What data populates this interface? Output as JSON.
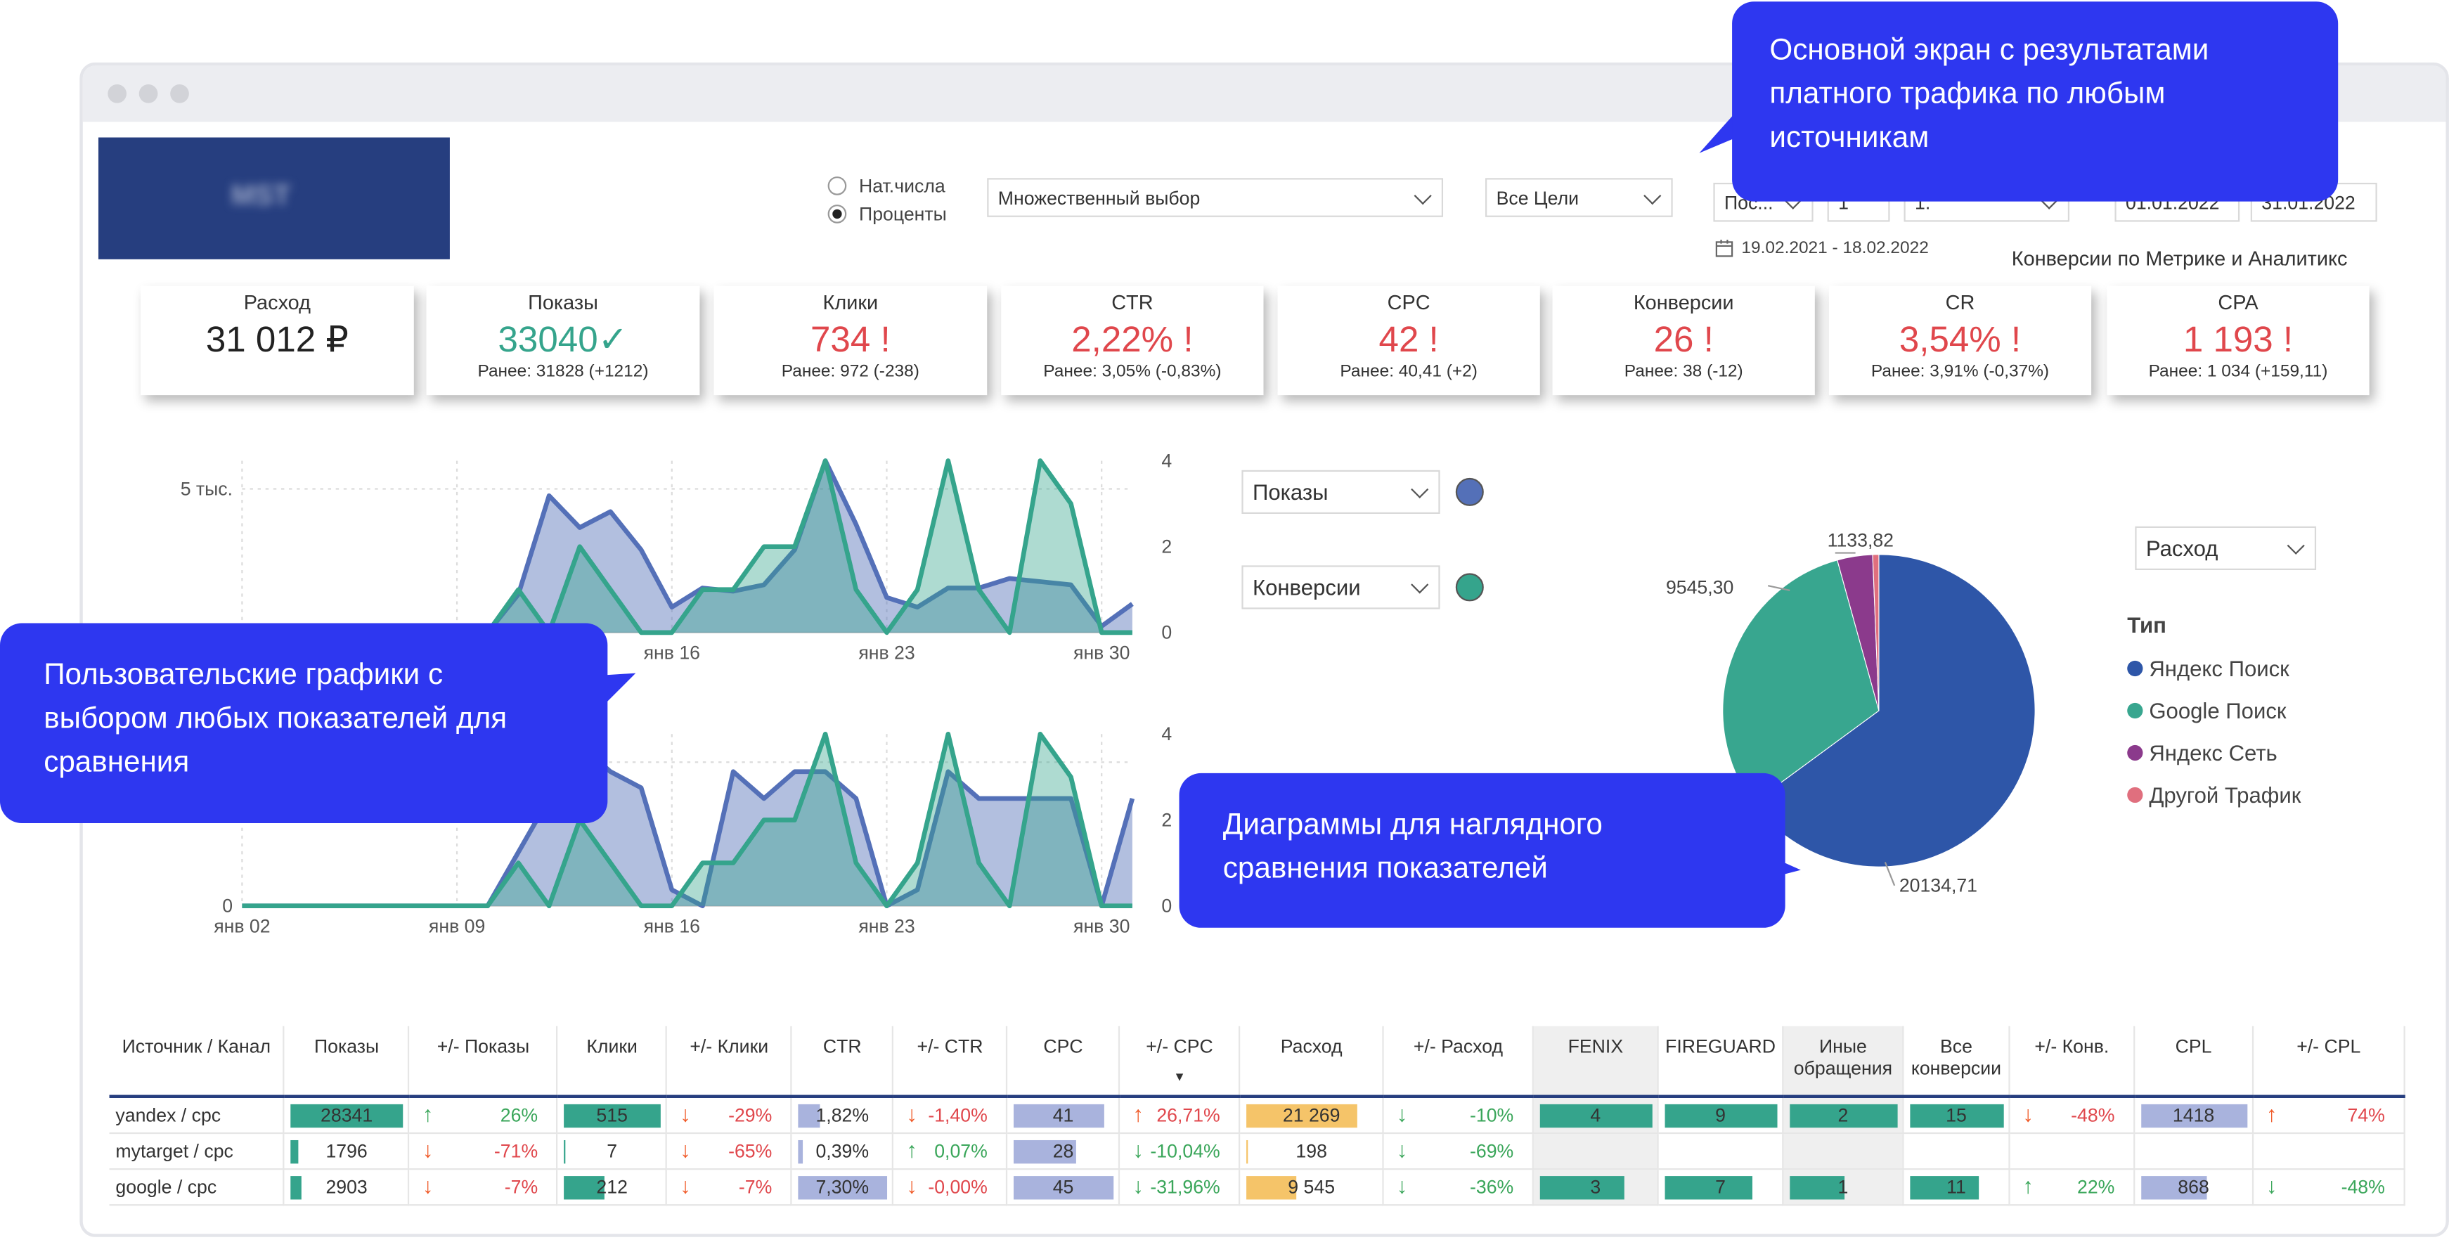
{
  "filters": {
    "radio_nat": "Нат.числа",
    "radio_pct": "Проценты",
    "multi_select": "Множественный выбор",
    "goals": "Все Цели",
    "period": "Пос...",
    "period_n": "1",
    "period_unit": "1.",
    "date_from": "01.01.2022",
    "date_to": "31.01.2022",
    "date_range": "19.02.2021 - 18.02.2022",
    "conversions_note": "Конверсии по Метрике и Аналитикс"
  },
  "kpis": [
    {
      "title": "Расход",
      "value": "31 012 ₽",
      "sub": "",
      "color": "#222222"
    },
    {
      "title": "Показы",
      "value": "33040✓",
      "sub": "Ранее: 31828 (+1212)",
      "color": "#35a48c"
    },
    {
      "title": "Клики",
      "value": "734 !",
      "sub": "Ранее: 972 (-238)",
      "color": "#e0474c"
    },
    {
      "title": "CTR",
      "value": "2,22% !",
      "sub": "Ранее: 3,05% (-0,83%)",
      "color": "#e0474c"
    },
    {
      "title": "CPC",
      "value": "42 !",
      "sub": "Ранее: 40,41 (+2)",
      "color": "#e0474c"
    },
    {
      "title": "Конверсии",
      "value": "26 !",
      "sub": "Ранее: 38 (-12)",
      "color": "#e0474c"
    },
    {
      "title": "CR",
      "value": "3,54% !",
      "sub": "Ранее: 3,91% (-0,37%)",
      "color": "#e0474c"
    },
    {
      "title": "CPA",
      "value": "1 193 !",
      "sub": "Ранее: 1 034 (+159,11)",
      "color": "#e0474c"
    }
  ],
  "callouts": {
    "top": "Основной экран с результатами платного трафика по любым источникам",
    "left": "Пользовательские графики с выбором любых показателей для сравнения",
    "bottom": "Диаграммы для наглядного сравнения показателей"
  },
  "selectors": {
    "metric1": "Показы",
    "metric2": "Конверсии",
    "metric1_color": "#5470b8",
    "metric2_color": "#35a48c",
    "pie_metric": "Расход"
  },
  "chart_data": [
    {
      "type": "area",
      "x": [
        "янв 02",
        "янв 03",
        "янв 04",
        "янв 05",
        "янв 06",
        "янв 07",
        "янв 08",
        "янв 09",
        "янв 10",
        "янв 11",
        "янв 12",
        "янв 13",
        "янв 14",
        "янв 15",
        "янв 16",
        "янв 17",
        "янв 18",
        "янв 19",
        "янв 20",
        "янв 21",
        "янв 22",
        "янв 23",
        "янв 24",
        "янв 25",
        "янв 26",
        "янв 27",
        "янв 28",
        "янв 29",
        "янв 30",
        "янв 31"
      ],
      "x_tick_labels": [
        "янв 16",
        "янв 23",
        "янв 30"
      ],
      "y_left_tick_labels": [
        "5 тыс."
      ],
      "y_right_ticks": [
        0,
        2,
        4
      ],
      "series": [
        {
          "name": "Показы",
          "axis": "left",
          "color": "#5470b8",
          "values": [
            0,
            0,
            0,
            0,
            0,
            0,
            0,
            0,
            0,
            1200,
            4300,
            3300,
            3800,
            2600,
            800,
            1400,
            1300,
            1500,
            2600,
            5400,
            3400,
            1100,
            800,
            1400,
            1400,
            1700,
            1600,
            1500,
            200,
            900
          ]
        },
        {
          "name": "Конверсии",
          "axis": "right",
          "color": "#35a48c",
          "values": [
            0,
            0,
            0,
            0,
            0,
            0,
            0,
            0,
            0,
            1,
            0,
            2,
            1,
            0,
            0,
            1,
            1,
            2,
            2,
            4,
            1,
            0,
            1,
            4,
            1,
            0,
            4,
            3,
            0,
            0
          ]
        }
      ]
    },
    {
      "type": "area",
      "x": [
        "янв 02",
        "янв 03",
        "янв 04",
        "янв 05",
        "янв 06",
        "янв 07",
        "янв 08",
        "янв 09",
        "янв 10",
        "янв 11",
        "янв 12",
        "янв 13",
        "янв 14",
        "янв 15",
        "янв 16",
        "янв 17",
        "янв 18",
        "янв 19",
        "янв 20",
        "янв 21",
        "янв 22",
        "янв 23",
        "янв 24",
        "янв 25",
        "янв 26",
        "янв 27",
        "янв 28",
        "янв 29",
        "янв 30",
        "янв 31"
      ],
      "x_tick_labels": [
        "янв 02",
        "янв 09",
        "янв 16",
        "янв 23",
        "янв 30"
      ],
      "y_left_tick_labels": [
        "0"
      ],
      "y_right_ticks": [
        0,
        2,
        4
      ],
      "series": [
        {
          "name": "Показы",
          "axis": "left",
          "color": "#5470b8",
          "values": [
            0,
            0,
            0,
            0,
            0,
            0,
            0,
            0,
            0,
            1,
            2,
            3,
            2.5,
            2.2,
            0.3,
            0,
            2.5,
            2,
            2.5,
            2.5,
            2,
            0,
            0.3,
            2.5,
            2,
            2,
            2,
            2,
            0,
            2
          ]
        },
        {
          "name": "Конверсии",
          "axis": "right",
          "color": "#35a48c",
          "values": [
            0,
            0,
            0,
            0,
            0,
            0,
            0,
            0,
            0,
            1,
            0,
            2,
            1,
            0,
            0,
            1,
            1,
            2,
            2,
            4,
            1,
            0,
            1,
            4,
            1,
            0,
            4,
            3,
            0,
            0
          ]
        }
      ]
    },
    {
      "type": "pie",
      "legend_title": "Тип",
      "slices": [
        {
          "label": "Яндекс Поиск",
          "value": 20134.71,
          "color": "#2e56a8"
        },
        {
          "label": "Google Поиск",
          "value": 9545.3,
          "color": "#38a68f"
        },
        {
          "label": "Яндекс Сеть",
          "value": 1133.82,
          "color": "#8b3a8c"
        },
        {
          "label": "Другой Трафик",
          "value": 198.17,
          "color": "#e06f7e"
        }
      ],
      "data_labels": [
        "20134,71",
        "9545,30",
        "1133,82"
      ]
    }
  ],
  "table": {
    "headers": [
      "Источник / Канал",
      "Показы",
      "+/- Показы",
      "Клики",
      "+/- Клики",
      "CTR",
      "+/- CTR",
      "CPC",
      "+/- CPC",
      "Расход",
      "+/- Расход",
      "FENIX",
      "FIREGUARD",
      "Иные обращения",
      "Все конверсии",
      "+/- Конв.",
      "CPL",
      "+/- CPL"
    ],
    "sort_marker": "▼",
    "rows": [
      {
        "source": "yandex / cpc",
        "shows": "28341",
        "shows_d": "26%",
        "shows_dir": "up",
        "clicks": "515",
        "clicks_d": "-29%",
        "clicks_dir": "down",
        "ctr": "1,82%",
        "ctr_d": "-1,40%",
        "ctr_dir": "down",
        "cpc": "41",
        "cpc_d": "26,71%",
        "cpc_dir": "up",
        "spend": "21 269",
        "spend_d": "-10%",
        "spend_dir": "down",
        "fenix": "4",
        "fireguard": "9",
        "other": "2",
        "all_conv": "15",
        "conv_d": "-48%",
        "conv_dir": "down",
        "cpl": "1418",
        "cpl_d": "74%",
        "cpl_dir": "up"
      },
      {
        "source": "mytarget / cpc",
        "shows": "1796",
        "shows_d": "-71%",
        "shows_dir": "down",
        "clicks": "7",
        "clicks_d": "-65%",
        "clicks_dir": "down",
        "ctr": "0,39%",
        "ctr_d": "0,07%",
        "ctr_dir": "up",
        "cpc": "28",
        "cpc_d": "-10,04%",
        "cpc_dir": "down",
        "spend": "198",
        "spend_d": "-69%",
        "spend_dir": "down",
        "fenix": "",
        "fireguard": "",
        "other": "",
        "all_conv": "",
        "conv_d": "",
        "conv_dir": "",
        "cpl": "",
        "cpl_d": "",
        "cpl_dir": ""
      },
      {
        "source": "google / cpc",
        "shows": "2903",
        "shows_d": "-7%",
        "shows_dir": "down",
        "clicks": "212",
        "clicks_d": "-7%",
        "clicks_dir": "down",
        "ctr": "7,30%",
        "ctr_d": "-0,00%",
        "ctr_dir": "down",
        "cpc": "45",
        "cpc_d": "-31,96%",
        "cpc_dir": "down",
        "spend": "9 545",
        "spend_d": "-36%",
        "spend_dir": "down",
        "fenix": "3",
        "fireguard": "7",
        "other": "1",
        "all_conv": "11",
        "conv_d": "22%",
        "conv_dir": "up",
        "cpl": "868",
        "cpl_d": "-48%",
        "cpl_dir": "down"
      }
    ]
  },
  "colors": {
    "accent_blue": "#2e37f0",
    "green": "#35a48c",
    "navy": "#263e7f",
    "red": "#e0474c",
    "bar_teal": "#35a48c",
    "bar_lavender": "#a9b3dd",
    "bar_yellow": "#f5c469"
  }
}
